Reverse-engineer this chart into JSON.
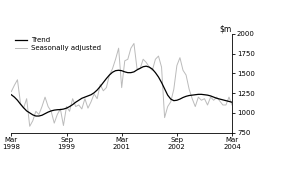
{
  "ylim": [
    750,
    2000
  ],
  "yticks": [
    750,
    1000,
    1250,
    1500,
    1750,
    2000
  ],
  "legend_entries": [
    "Trend",
    "Seasonally adjusted"
  ],
  "trend_color": "#000000",
  "seasonal_color": "#bbbbbb",
  "trend_lw": 0.9,
  "seasonal_lw": 0.7,
  "trend": [
    1230,
    1200,
    1160,
    1110,
    1065,
    1025,
    1000,
    975,
    960,
    960,
    970,
    990,
    1010,
    1025,
    1035,
    1040,
    1042,
    1048,
    1060,
    1080,
    1105,
    1135,
    1160,
    1185,
    1200,
    1215,
    1230,
    1255,
    1290,
    1335,
    1385,
    1435,
    1480,
    1515,
    1535,
    1540,
    1535,
    1520,
    1510,
    1510,
    1520,
    1545,
    1565,
    1585,
    1592,
    1580,
    1555,
    1510,
    1455,
    1385,
    1305,
    1225,
    1175,
    1155,
    1160,
    1175,
    1195,
    1210,
    1220,
    1225,
    1230,
    1235,
    1235,
    1230,
    1225,
    1215,
    1200,
    1185,
    1175,
    1165,
    1155,
    1145,
    1135
  ],
  "seasonal": [
    1270,
    1350,
    1420,
    1120,
    1060,
    1180,
    830,
    900,
    1020,
    980,
    1080,
    1200,
    1080,
    1020,
    870,
    980,
    1050,
    840,
    1080,
    1020,
    1180,
    1080,
    1100,
    1050,
    1180,
    1060,
    1140,
    1240,
    1180,
    1360,
    1280,
    1320,
    1480,
    1560,
    1680,
    1820,
    1320,
    1660,
    1680,
    1820,
    1880,
    1560,
    1560,
    1680,
    1640,
    1580,
    1540,
    1680,
    1720,
    1580,
    940,
    1080,
    1140,
    1300,
    1600,
    1700,
    1540,
    1480,
    1300,
    1180,
    1080,
    1200,
    1160,
    1180,
    1100,
    1200,
    1160,
    1200,
    1150,
    1100,
    1100,
    1200,
    1100
  ],
  "total_months": 72,
  "tick_months": [
    0,
    18,
    36,
    54,
    72
  ],
  "tick_labels": [
    "Mar\n1998",
    "Sep\n1999",
    "Mar\n2001",
    "Sep\n2002",
    "Mar\n2004"
  ]
}
